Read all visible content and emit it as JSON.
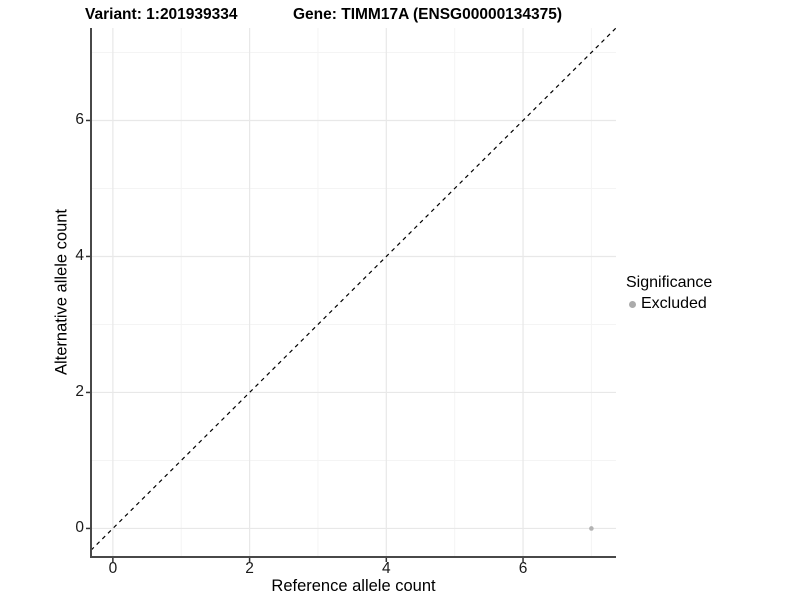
{
  "header": {
    "variant_label": "Variant: 1:201939334",
    "gene_label": "Gene: TIMM17A (ENSG00000134375)"
  },
  "chart_data": {
    "type": "scatter",
    "title": "Variant: 1:201939334   Gene: TIMM17A (ENSG00000134375)",
    "xlabel": "Reference allele count",
    "ylabel": "Alternative allele count",
    "xlim": [
      -0.32,
      7.36
    ],
    "ylim": [
      -0.42,
      7.36
    ],
    "x_ticks_major": [
      0,
      2,
      4,
      6
    ],
    "x_ticks_minor": [
      1,
      3,
      5,
      7
    ],
    "y_ticks_major": [
      0,
      2,
      4,
      6
    ],
    "y_ticks_minor": [
      1,
      3,
      5,
      7
    ],
    "grid": true,
    "reference_line": {
      "slope": 1,
      "intercept": 0,
      "style": "dashed",
      "color": "#000000"
    },
    "series": [
      {
        "name": "Excluded",
        "color": "#b3b3b3",
        "points": [
          {
            "x": 7,
            "y": 0
          }
        ]
      }
    ],
    "legend": {
      "title": "Significance",
      "position": "right",
      "items": [
        {
          "label": "Excluded",
          "color": "#ababab"
        }
      ]
    },
    "style": {
      "background": "#ffffff",
      "grid_major_color": "#e8e8e8",
      "grid_minor_color": "#f4f4f4",
      "axis_line_color": "#484848",
      "tick_color": "#333333",
      "point_radius": 2.3,
      "legend_key_radius": 3.5
    }
  }
}
